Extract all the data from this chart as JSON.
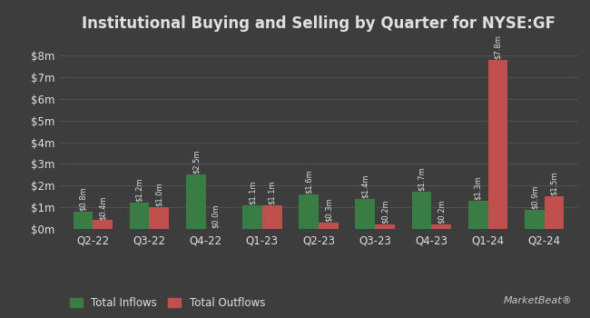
{
  "title": "Institutional Buying and Selling by Quarter for NYSE:GF",
  "quarters": [
    "Q2-22",
    "Q3-22",
    "Q4-22",
    "Q1-23",
    "Q2-23",
    "Q3-23",
    "Q4-23",
    "Q1-24",
    "Q2-24"
  ],
  "inflows": [
    0.8,
    1.2,
    2.5,
    1.1,
    1.6,
    1.4,
    1.7,
    1.3,
    0.9
  ],
  "outflows": [
    0.4,
    1.0,
    0.0,
    1.1,
    0.3,
    0.2,
    0.2,
    7.8,
    1.5
  ],
  "inflow_labels": [
    "$0.8m",
    "$1.2m",
    "$2.5m",
    "$1.1m",
    "$1.6m",
    "$1.4m",
    "$1.7m",
    "$1.3m",
    "$0.9m"
  ],
  "outflow_labels": [
    "$0.4m",
    "$1.0m",
    "$0.0m",
    "$1.1m",
    "$0.3m",
    "$0.2m",
    "$0.2m",
    "$7.8m",
    "$1.5m"
  ],
  "inflow_color": "#3a7d44",
  "outflow_color": "#c0504d",
  "background_color": "#3d3d3d",
  "text_color": "#e0e0e0",
  "grid_color": "#555555",
  "ylim": [
    0,
    8.8
  ],
  "yticks": [
    0,
    1,
    2,
    3,
    4,
    5,
    6,
    7,
    8
  ],
  "ytick_labels": [
    "$0m",
    "$1m",
    "$2m",
    "$3m",
    "$4m",
    "$5m",
    "$6m",
    "$7m",
    "$8m"
  ],
  "bar_width": 0.35,
  "legend_inflow": "Total Inflows",
  "legend_outflow": "Total Outflows",
  "title_fontsize": 12,
  "label_fontsize": 6.0,
  "axis_fontsize": 8.5,
  "legend_fontsize": 8.5,
  "marketbeat_fontsize": 8
}
